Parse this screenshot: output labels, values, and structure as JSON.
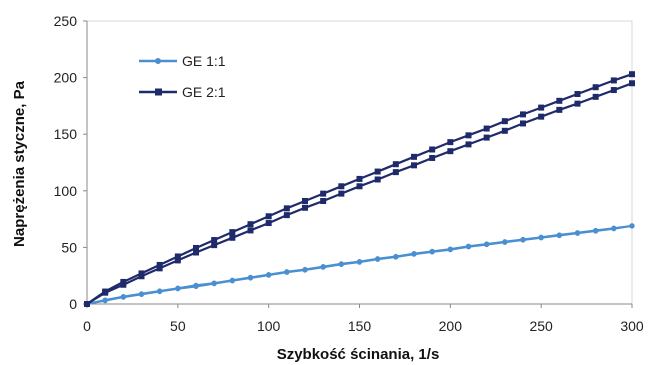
{
  "chart_data": {
    "type": "line",
    "xlabel": "Szybkość ścinania, 1/s",
    "ylabel": "Naprężenia styczne, Pa",
    "xlim": [
      0,
      300
    ],
    "ylim": [
      0,
      250
    ],
    "xticks": [
      "0",
      "50",
      "100",
      "150",
      "200",
      "250",
      "300"
    ],
    "yticks": [
      "0",
      "50",
      "100",
      "150",
      "200",
      "250"
    ],
    "grid": false,
    "legend_position": "top-left",
    "series": [
      {
        "name": "GE 1:1",
        "color": "#4a8fd0",
        "marker": "circle",
        "curves": [
          {
            "x": [
              0,
              10,
              20,
              30,
              40,
              50,
              60,
              70,
              80,
              90,
              100,
              110,
              120,
              130,
              140,
              150,
              160,
              170,
              180,
              190,
              200,
              210,
              220,
              230,
              240,
              250,
              260,
              270,
              280,
              290,
              300
            ],
            "y": [
              0,
              3.5,
              6.5,
              9,
              11.5,
              14,
              16.5,
              18.5,
              21,
              23.5,
              26,
              28.5,
              30.5,
              33,
              35.5,
              37.5,
              40,
              42,
              44.5,
              46.5,
              48.5,
              51,
              53,
              55,
              57,
              59,
              61,
              63,
              65,
              67,
              69
            ]
          },
          {
            "x": [
              300,
              290,
              280,
              270,
              260,
              250,
              240,
              230,
              220,
              210,
              200,
              190,
              180,
              170,
              160,
              150,
              140,
              130,
              120,
              110,
              100,
              90,
              80,
              70,
              60,
              50,
              40,
              30,
              20,
              10,
              0
            ],
            "y": [
              69,
              66.5,
              64.5,
              62.5,
              60.5,
              58.5,
              56.5,
              54.5,
              52.5,
              50.5,
              48,
              46,
              44,
              41.5,
              39.5,
              37,
              35,
              32.5,
              30,
              28,
              25.5,
              23,
              20.5,
              18,
              15.5,
              13.5,
              11,
              8.5,
              6,
              3,
              0
            ]
          }
        ]
      },
      {
        "name": "GE 2:1",
        "color": "#1f2a6b",
        "marker": "square",
        "curves": [
          {
            "x": [
              0,
              10,
              20,
              30,
              40,
              50,
              60,
              70,
              80,
              90,
              100,
              110,
              120,
              130,
              140,
              150,
              160,
              170,
              180,
              190,
              200,
              210,
              220,
              230,
              240,
              250,
              260,
              270,
              280,
              290,
              300
            ],
            "y": [
              0,
              10,
              17,
              24.5,
              31.5,
              38.5,
              45.5,
              52,
              58.5,
              65,
              71.5,
              78.5,
              85,
              91,
              97.5,
              104,
              110,
              116.5,
              122.5,
              129,
              135,
              141,
              147,
              153,
              159.5,
              165.5,
              171.5,
              177,
              183,
              189,
              195
            ]
          },
          {
            "x": [
              300,
              290,
              280,
              270,
              260,
              250,
              240,
              230,
              220,
              210,
              200,
              190,
              180,
              170,
              160,
              150,
              140,
              130,
              120,
              110,
              100,
              90,
              80,
              70,
              60,
              50,
              40,
              30,
              20,
              10,
              0
            ],
            "y": [
              203,
              197.5,
              191.5,
              185.5,
              179.5,
              173.5,
              167.5,
              161.5,
              155,
              149,
              143,
              136.5,
              130,
              123.5,
              117,
              110.5,
              104,
              97.5,
              91,
              84.5,
              77.5,
              70.5,
              63.5,
              56.5,
              49.5,
              42,
              34.5,
              27,
              19.5,
              11,
              0
            ]
          }
        ]
      }
    ]
  }
}
